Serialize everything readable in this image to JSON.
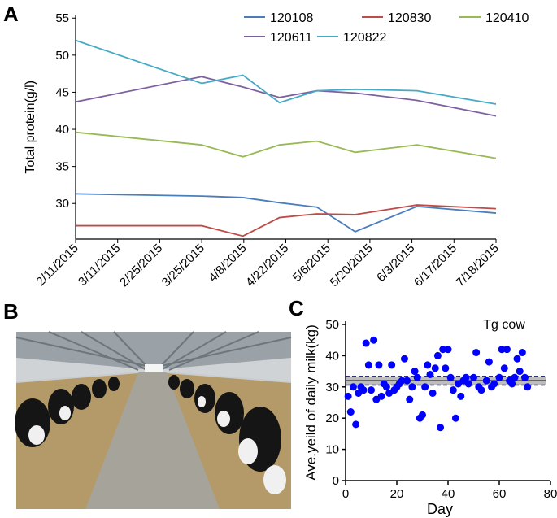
{
  "panel_labels": [
    "A",
    "B",
    "C"
  ],
  "chart_data": [
    {
      "type": "line",
      "y_label": "Total protein(g/l)",
      "x": [
        0,
        3,
        3.98,
        4.85,
        5.74,
        6.65,
        8.12,
        10
      ],
      "xlim": [
        0,
        10
      ],
      "xticks": [
        {
          "value": 0,
          "label": "2/11/2015"
        },
        {
          "value": 1,
          "label": "3/11/2015"
        },
        {
          "value": 2,
          "label": "2/25/2015"
        },
        {
          "value": 3,
          "label": "3/25/2015"
        },
        {
          "value": 4,
          "label": "4/8/2015"
        },
        {
          "value": 5,
          "label": "4/22/2015"
        },
        {
          "value": 6,
          "label": "5/6/2015"
        },
        {
          "value": 7,
          "label": "5/20/2015"
        },
        {
          "value": 8,
          "label": "6/3/2015"
        },
        {
          "value": 9,
          "label": "6/17/2015"
        },
        {
          "value": 10,
          "label": "7/18/2015"
        }
      ],
      "ylim": [
        25.2,
        55.4
      ],
      "yticks": [
        30,
        35,
        40,
        45,
        50,
        55
      ],
      "series": [
        {
          "name": "120108",
          "color": "#4a7ebb",
          "values": [
            31.3,
            31.0,
            30.8,
            30.1,
            29.5,
            26.2,
            29.6,
            28.7
          ]
        },
        {
          "name": "120830",
          "color": "#be4b48",
          "values": [
            27.0,
            27.0,
            25.6,
            28.1,
            28.6,
            28.5,
            29.8,
            29.3
          ]
        },
        {
          "name": "120410",
          "color": "#98b954",
          "values": [
            39.6,
            37.9,
            36.3,
            37.9,
            38.4,
            36.9,
            37.9,
            36.1
          ]
        },
        {
          "name": "120611",
          "color": "#7d60a0",
          "values": [
            43.7,
            47.1,
            45.7,
            44.3,
            45.2,
            44.9,
            43.9,
            41.8
          ]
        },
        {
          "name": "120822",
          "color": "#46aac5",
          "values": [
            52.0,
            46.2,
            47.3,
            43.6,
            45.2,
            45.4,
            45.2,
            43.4
          ]
        }
      ]
    },
    {
      "type": "scatter",
      "title": "Tg cow",
      "x_label": "Day",
      "y_label": "Ave.yeild of daily milk(kg)",
      "color": "#0000ff",
      "x": [
        1,
        2,
        3,
        4,
        5,
        6,
        7,
        8,
        9,
        10,
        11,
        12,
        13,
        14,
        15,
        16,
        17,
        18,
        19,
        20,
        21,
        22,
        23,
        24,
        25,
        26,
        27,
        28,
        29,
        30,
        31,
        32,
        33,
        34,
        35,
        36,
        37,
        38,
        39,
        40,
        41,
        42,
        43,
        44,
        45,
        46,
        47,
        48,
        50,
        51,
        52,
        53,
        55,
        56,
        57,
        58,
        60,
        61,
        62,
        63,
        64,
        65,
        66,
        67,
        68,
        69,
        70,
        71
      ],
      "values": [
        27,
        22,
        30,
        18,
        28,
        30,
        29,
        44,
        37,
        29,
        45,
        26,
        37,
        27,
        31,
        30,
        28,
        37,
        29,
        30,
        31,
        32,
        39,
        32,
        26,
        30,
        35,
        33,
        20,
        21,
        30,
        37,
        34,
        28,
        36,
        40,
        17,
        42,
        36,
        42,
        33,
        29,
        20,
        31,
        27,
        32,
        33,
        31,
        33,
        41,
        30,
        29,
        32,
        38,
        30,
        31,
        33,
        42,
        36,
        42,
        32,
        31,
        33,
        39,
        35,
        41,
        33,
        30
      ],
      "mean_line": 32,
      "ci_band": [
        30.6,
        33.4
      ],
      "xlim": [
        0,
        80
      ],
      "xticks": [
        0,
        20,
        40,
        60,
        80
      ],
      "ylim": [
        0,
        50
      ],
      "yticks": [
        0,
        10,
        20,
        30,
        40,
        50
      ]
    }
  ]
}
